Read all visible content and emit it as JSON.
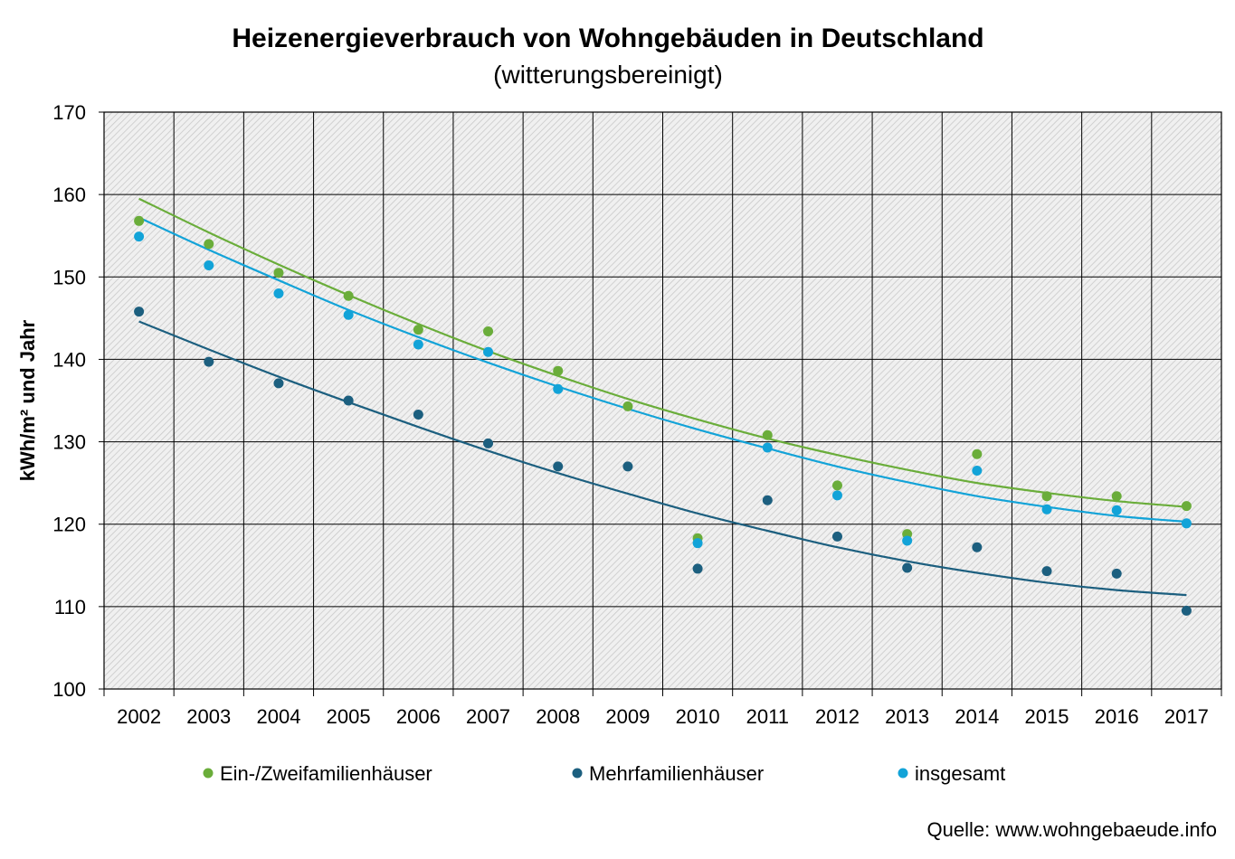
{
  "chart_data": {
    "type": "scatter",
    "title": "Heizenergieverbrauch  von Wohngebäuden  in Deutschland",
    "subtitle": "(witterungsbereinigt)",
    "xlabel": "",
    "ylabel": "kWh/m² und Jahr",
    "ylim": [
      100,
      170
    ],
    "yticks": [
      "100",
      "110",
      "120",
      "130",
      "140",
      "150",
      "160",
      "170"
    ],
    "categories": [
      "2002",
      "2003",
      "2004",
      "2005",
      "2006",
      "2007",
      "2008",
      "2009",
      "2010",
      "2011",
      "2012",
      "2013",
      "2014",
      "2015",
      "2016",
      "2017"
    ],
    "grid": true,
    "legend_position": "bottom",
    "series": [
      {
        "name": "Ein-/Zweifamilienhäuser",
        "color": "#6aad3a",
        "values": [
          156.8,
          154.0,
          150.5,
          147.7,
          143.6,
          143.4,
          138.6,
          134.3,
          118.3,
          130.8,
          124.7,
          118.8,
          128.5,
          123.4,
          123.4,
          122.2
        ],
        "trend": [
          159.5,
          155.4,
          151.5,
          147.8,
          144.3,
          141.0,
          138.0,
          135.2,
          132.7,
          130.4,
          128.4,
          126.6,
          125.0,
          123.8,
          122.8,
          122.1
        ]
      },
      {
        "name": "Mehrfamilienhäuser",
        "color": "#1c5f7f",
        "values": [
          145.8,
          139.7,
          137.1,
          135.0,
          133.3,
          129.8,
          127.0,
          127.0,
          114.6,
          122.9,
          118.5,
          114.7,
          117.2,
          114.3,
          114.0,
          109.5
        ],
        "trend": [
          144.6,
          141.2,
          137.9,
          134.8,
          131.8,
          128.9,
          126.2,
          123.7,
          121.3,
          119.2,
          117.2,
          115.5,
          114.1,
          112.9,
          112.0,
          111.4
        ]
      },
      {
        "name": "insgesamt",
        "color": "#12a3d8",
        "values": [
          154.9,
          151.4,
          148.0,
          145.4,
          141.8,
          140.9,
          136.4,
          null,
          117.7,
          129.3,
          123.5,
          118.0,
          126.5,
          121.8,
          121.7,
          120.1
        ],
        "trend": [
          157.2,
          153.3,
          149.6,
          146.0,
          142.7,
          139.6,
          136.7,
          134.0,
          131.5,
          129.2,
          127.0,
          125.1,
          123.4,
          122.1,
          121.0,
          120.3
        ]
      }
    ],
    "source": "Quelle: www.wohngebaeude.info"
  }
}
